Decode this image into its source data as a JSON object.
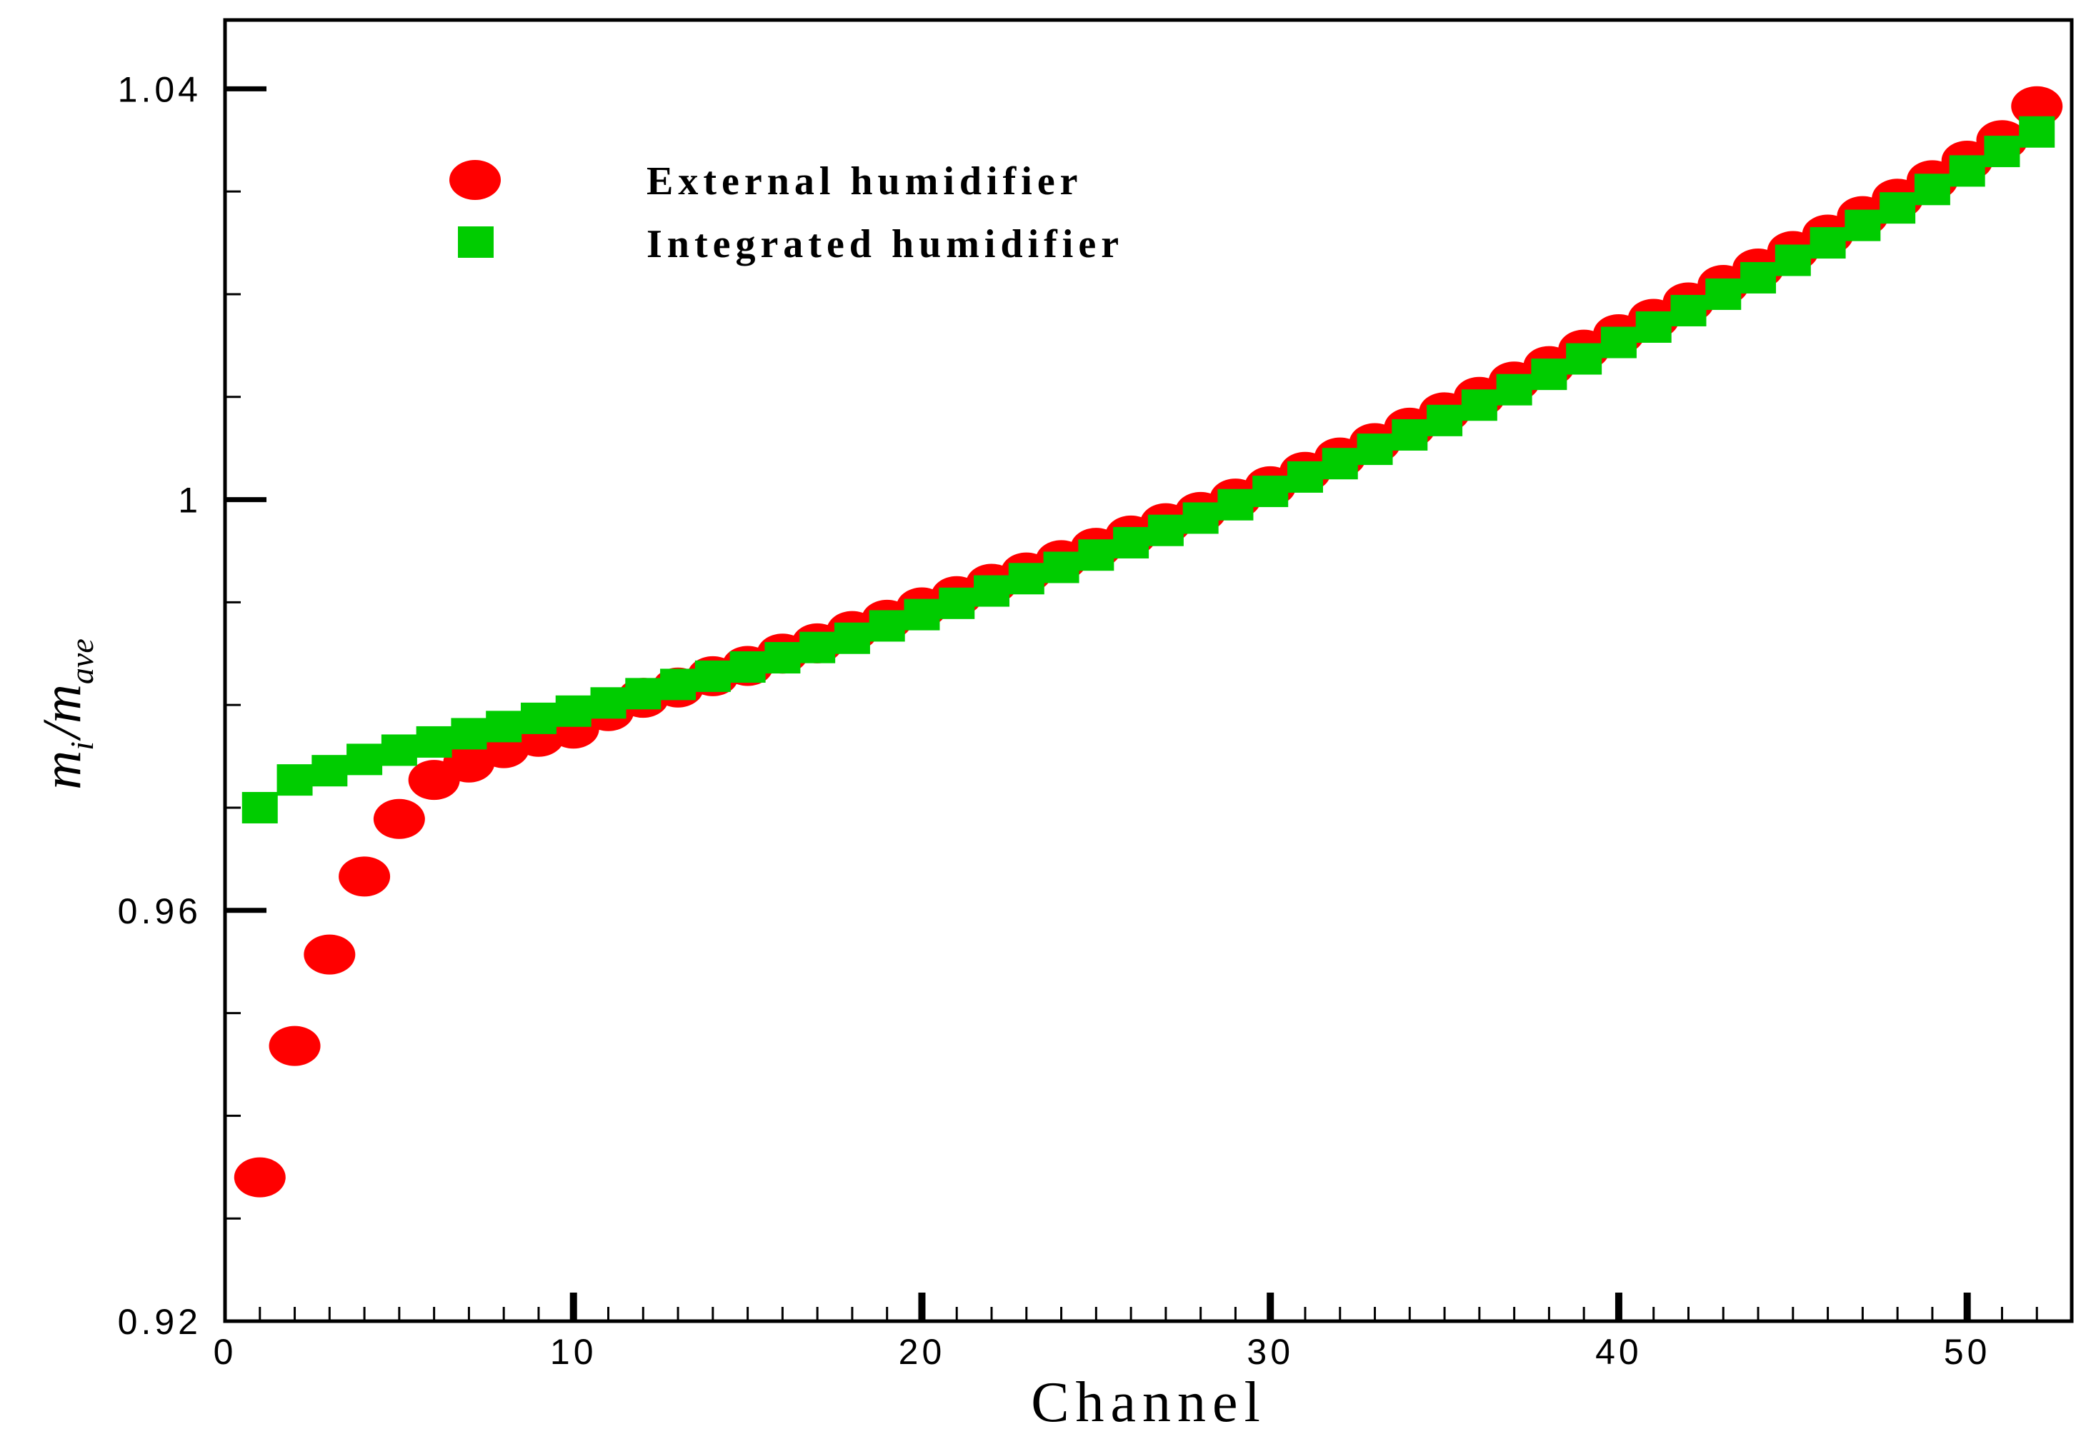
{
  "chart_data": {
    "type": "scatter",
    "title": "",
    "xlabel": "Channel",
    "ylabel": {
      "m": "m",
      "i": "i",
      "slash": "/",
      "ave": "ave"
    },
    "xlim": [
      0,
      53
    ],
    "ylim": [
      0.92,
      1.0467
    ],
    "x_ticks": [
      0,
      10,
      20,
      30,
      40,
      50
    ],
    "x_tick_labels": [
      "0",
      "10",
      "20",
      "30",
      "40",
      "50"
    ],
    "y_ticks": [
      0.92,
      0.96,
      1.0,
      1.04
    ],
    "y_tick_labels": [
      "0.92",
      "0.96",
      "1",
      "1.04"
    ],
    "grid": false,
    "legend_position": "top-left",
    "series": [
      {
        "name": "External humidifier",
        "marker": "circle",
        "color": "#ff0000",
        "x": [
          1,
          2,
          3,
          4,
          5,
          6,
          7,
          8,
          9,
          10,
          11,
          12,
          13,
          14,
          15,
          16,
          17,
          18,
          19,
          20,
          21,
          22,
          23,
          24,
          25,
          26,
          27,
          28,
          29,
          30,
          31,
          32,
          33,
          34,
          35,
          36,
          37,
          38,
          39,
          40,
          41,
          42,
          43,
          44,
          45,
          46,
          47,
          48,
          49,
          50,
          51,
          52
        ],
        "y": [
          0.934,
          0.9468,
          0.9557,
          0.9633,
          0.9689,
          0.9727,
          0.9744,
          0.9758,
          0.9769,
          0.9777,
          0.9794,
          0.9807,
          0.9817,
          0.9828,
          0.9838,
          0.985,
          0.986,
          0.9872,
          0.9883,
          0.9895,
          0.9906,
          0.9918,
          0.9929,
          0.9941,
          0.9953,
          0.9965,
          0.9977,
          0.9988,
          1.0001,
          1.0013,
          1.0027,
          1.0041,
          1.0055,
          1.007,
          1.0085,
          1.01,
          1.0115,
          1.013,
          1.0146,
          1.0161,
          1.0176,
          1.0192,
          1.0209,
          1.0225,
          1.0242,
          1.0258,
          1.0276,
          1.0293,
          1.0311,
          1.033,
          1.035,
          1.0383
        ]
      },
      {
        "name": "Integrated humidifier",
        "marker": "square",
        "color": "#00cc00",
        "x": [
          1,
          2,
          3,
          4,
          5,
          6,
          7,
          8,
          9,
          10,
          11,
          12,
          13,
          14,
          15,
          16,
          17,
          18,
          19,
          20,
          21,
          22,
          23,
          24,
          25,
          26,
          27,
          28,
          29,
          30,
          31,
          32,
          33,
          34,
          35,
          36,
          37,
          38,
          39,
          40,
          41,
          42,
          43,
          44,
          45,
          46,
          47,
          48,
          49,
          50,
          51,
          52
        ],
        "y": [
          0.97,
          0.9727,
          0.9736,
          0.9747,
          0.9756,
          0.9764,
          0.9772,
          0.9779,
          0.9787,
          0.9794,
          0.9802,
          0.9811,
          0.982,
          0.9828,
          0.9837,
          0.9846,
          0.9856,
          0.9865,
          0.9877,
          0.9888,
          0.9899,
          0.9911,
          0.9923,
          0.9934,
          0.9946,
          0.9958,
          0.997,
          0.9982,
          0.9995,
          1.0008,
          1.0022,
          1.0035,
          1.0049,
          1.0063,
          1.0077,
          1.0092,
          1.0107,
          1.0122,
          1.0137,
          1.0153,
          1.0168,
          1.0184,
          1.02,
          1.0216,
          1.0233,
          1.025,
          1.0267,
          1.0284,
          1.0302,
          1.032,
          1.0339,
          1.0358
        ]
      }
    ]
  }
}
